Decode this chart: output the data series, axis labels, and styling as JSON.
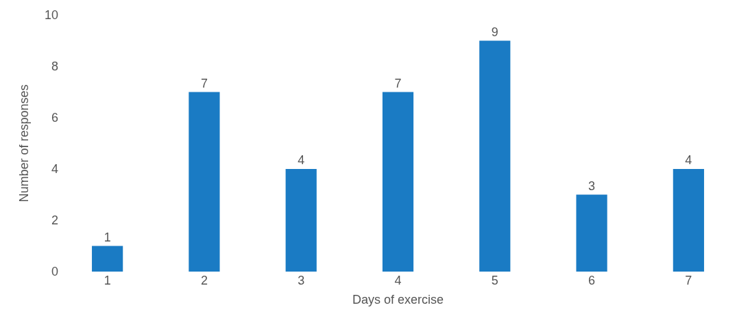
{
  "chart_data": {
    "type": "bar",
    "xlabel": "Days of exercise",
    "ylabel": "Number of responses",
    "categories": [
      "1",
      "2",
      "3",
      "4",
      "5",
      "6",
      "7"
    ],
    "values": [
      1,
      7,
      4,
      7,
      9,
      3,
      4
    ],
    "color": "#1a7bc4",
    "ylim": [
      0,
      10
    ],
    "yticks": [
      0,
      2,
      4,
      6,
      8,
      10
    ],
    "data_labels": true,
    "grid": false
  }
}
